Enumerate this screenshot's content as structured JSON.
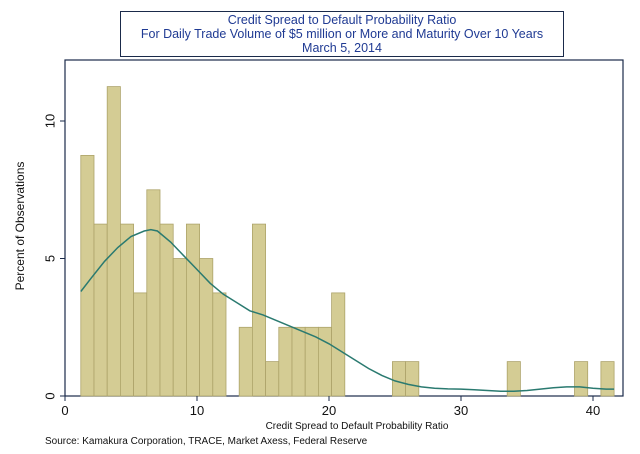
{
  "title_lines": [
    "Credit Spread to Default Probability Ratio",
    "For Daily Trade Volume of $5 million or More and Maturity Over 10 Years",
    "March 5, 2014"
  ],
  "source": "Source: Kamakura Corporation, TRACE, Market Axess, Federal Reserve",
  "colors": {
    "bar_fill": "#d4cc94",
    "bar_stroke": "#ada36a",
    "density_line": "#2a7a70",
    "title_text": "#1f3a93",
    "frame": "#1a2a4a"
  },
  "chart_data": {
    "type": "bar",
    "subtype": "histogram with kernel density overlay",
    "xlabel": "Credit Spread to Default Probability Ratio",
    "ylabel": "Percent of Observations",
    "xlim": [
      0,
      42
    ],
    "ylim": [
      0,
      12
    ],
    "xticks": [
      0,
      10,
      20,
      30,
      40
    ],
    "yticks": [
      0,
      5,
      10
    ],
    "grid": false,
    "bin_width": 1.0,
    "bins": [
      {
        "x0": 1.2,
        "value": 8.75
      },
      {
        "x0": 2.2,
        "value": 6.25
      },
      {
        "x0": 3.2,
        "value": 11.25
      },
      {
        "x0": 4.2,
        "value": 6.25
      },
      {
        "x0": 5.2,
        "value": 3.75
      },
      {
        "x0": 6.2,
        "value": 7.5
      },
      {
        "x0": 7.2,
        "value": 6.25
      },
      {
        "x0": 8.2,
        "value": 5.0
      },
      {
        "x0": 9.2,
        "value": 6.25
      },
      {
        "x0": 10.2,
        "value": 5.0
      },
      {
        "x0": 11.2,
        "value": 3.75
      },
      {
        "x0": 13.2,
        "value": 2.5
      },
      {
        "x0": 14.2,
        "value": 6.25
      },
      {
        "x0": 15.2,
        "value": 1.25
      },
      {
        "x0": 16.2,
        "value": 2.5
      },
      {
        "x0": 17.2,
        "value": 2.5
      },
      {
        "x0": 18.2,
        "value": 2.5
      },
      {
        "x0": 19.2,
        "value": 2.5
      },
      {
        "x0": 20.2,
        "value": 3.75
      },
      {
        "x0": 24.8,
        "value": 1.25
      },
      {
        "x0": 25.8,
        "value": 1.25
      },
      {
        "x0": 33.5,
        "value": 1.25
      },
      {
        "x0": 38.6,
        "value": 1.25
      },
      {
        "x0": 40.6,
        "value": 1.25
      }
    ],
    "density": {
      "x": [
        1.2,
        2,
        3,
        4,
        5,
        6,
        6.5,
        7,
        8,
        9,
        10,
        11,
        12,
        13,
        14,
        15,
        16,
        17,
        18,
        19,
        20,
        21,
        22,
        23,
        24,
        25,
        26,
        27,
        28,
        29,
        30,
        31,
        32,
        33,
        34,
        35,
        36,
        37,
        38,
        39,
        40,
        41,
        41.6
      ],
      "y": [
        3.8,
        4.3,
        4.9,
        5.4,
        5.8,
        6.0,
        6.05,
        6.0,
        5.6,
        5.1,
        4.6,
        4.1,
        3.7,
        3.4,
        3.1,
        2.95,
        2.75,
        2.55,
        2.35,
        2.15,
        1.9,
        1.6,
        1.3,
        1.0,
        0.75,
        0.55,
        0.42,
        0.33,
        0.28,
        0.26,
        0.25,
        0.23,
        0.2,
        0.17,
        0.17,
        0.2,
        0.25,
        0.3,
        0.33,
        0.33,
        0.28,
        0.25,
        0.25
      ]
    }
  }
}
